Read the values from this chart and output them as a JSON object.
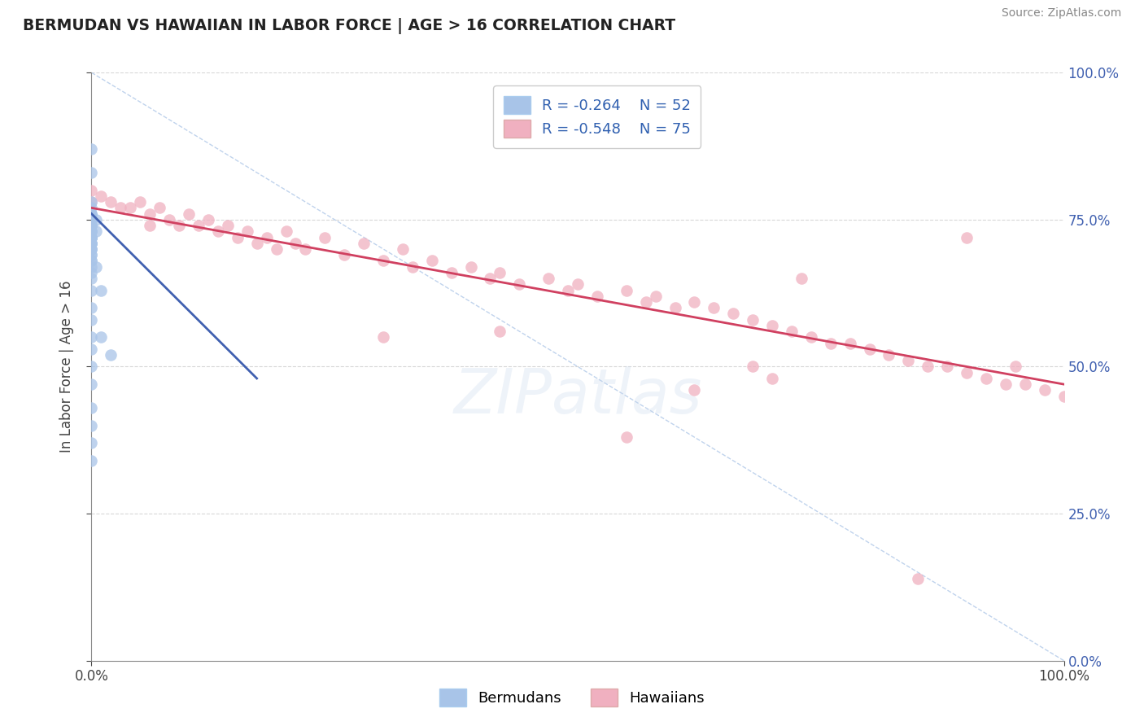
{
  "title": "BERMUDAN VS HAWAIIAN IN LABOR FORCE | AGE > 16 CORRELATION CHART",
  "source": "Source: ZipAtlas.com",
  "ylabel": "In Labor Force | Age > 16",
  "xlim": [
    0.0,
    1.0
  ],
  "ylim": [
    0.0,
    1.0
  ],
  "legend_r_bermudans": "R = -0.264",
  "legend_n_bermudans": "N = 52",
  "legend_r_hawaiians": "R = -0.548",
  "legend_n_hawaiians": "N = 75",
  "color_bermudans_fill": "#a8c4e8",
  "color_bermudans_edge": "#7aaadd",
  "color_hawaiians_fill": "#f0b0c0",
  "color_hawaiians_edge": "#e080a0",
  "color_line_bermudans": "#4060b0",
  "color_line_hawaiians": "#d04060",
  "color_diagonal": "#b0c8e8",
  "watermark": "ZIPatlas",
  "bg_color": "#ffffff",
  "grid_color": "#d8d8d8",
  "bermudans_x": [
    0.0,
    0.0,
    0.0,
    0.0,
    0.0,
    0.0,
    0.0,
    0.0,
    0.0,
    0.0,
    0.0,
    0.0,
    0.0,
    0.0,
    0.0,
    0.0,
    0.0,
    0.0,
    0.0,
    0.0,
    0.0,
    0.0,
    0.0,
    0.0,
    0.0,
    0.0,
    0.0,
    0.0,
    0.0,
    0.0,
    0.0,
    0.0,
    0.0,
    0.0,
    0.0,
    0.0,
    0.0,
    0.0,
    0.0,
    0.0,
    0.0,
    0.0,
    0.0,
    0.0,
    0.0,
    0.0,
    0.005,
    0.005,
    0.005,
    0.01,
    0.01,
    0.02
  ],
  "bermudans_y": [
    0.87,
    0.83,
    0.78,
    0.77,
    0.76,
    0.76,
    0.76,
    0.75,
    0.75,
    0.75,
    0.74,
    0.74,
    0.74,
    0.73,
    0.73,
    0.73,
    0.72,
    0.72,
    0.72,
    0.72,
    0.72,
    0.71,
    0.71,
    0.71,
    0.71,
    0.7,
    0.7,
    0.7,
    0.69,
    0.69,
    0.68,
    0.68,
    0.67,
    0.66,
    0.65,
    0.63,
    0.6,
    0.58,
    0.55,
    0.53,
    0.5,
    0.47,
    0.43,
    0.4,
    0.37,
    0.34,
    0.75,
    0.73,
    0.67,
    0.63,
    0.55,
    0.52
  ],
  "hawaiians_x": [
    0.0,
    0.0,
    0.01,
    0.02,
    0.03,
    0.04,
    0.05,
    0.06,
    0.06,
    0.07,
    0.08,
    0.09,
    0.1,
    0.11,
    0.12,
    0.13,
    0.14,
    0.15,
    0.16,
    0.17,
    0.18,
    0.19,
    0.2,
    0.21,
    0.22,
    0.24,
    0.26,
    0.28,
    0.3,
    0.32,
    0.33,
    0.35,
    0.37,
    0.39,
    0.41,
    0.42,
    0.44,
    0.47,
    0.49,
    0.5,
    0.52,
    0.55,
    0.57,
    0.58,
    0.6,
    0.62,
    0.64,
    0.66,
    0.68,
    0.7,
    0.72,
    0.74,
    0.76,
    0.78,
    0.8,
    0.82,
    0.84,
    0.86,
    0.88,
    0.9,
    0.92,
    0.94,
    0.96,
    0.68,
    0.7,
    0.55,
    0.62,
    0.73,
    0.85,
    0.9,
    0.95,
    0.98,
    1.0,
    0.3,
    0.42
  ],
  "hawaiians_y": [
    0.8,
    0.78,
    0.79,
    0.78,
    0.77,
    0.77,
    0.78,
    0.76,
    0.74,
    0.77,
    0.75,
    0.74,
    0.76,
    0.74,
    0.75,
    0.73,
    0.74,
    0.72,
    0.73,
    0.71,
    0.72,
    0.7,
    0.73,
    0.71,
    0.7,
    0.72,
    0.69,
    0.71,
    0.68,
    0.7,
    0.67,
    0.68,
    0.66,
    0.67,
    0.65,
    0.66,
    0.64,
    0.65,
    0.63,
    0.64,
    0.62,
    0.63,
    0.61,
    0.62,
    0.6,
    0.61,
    0.6,
    0.59,
    0.58,
    0.57,
    0.56,
    0.55,
    0.54,
    0.54,
    0.53,
    0.52,
    0.51,
    0.5,
    0.5,
    0.49,
    0.48,
    0.47,
    0.47,
    0.5,
    0.48,
    0.38,
    0.46,
    0.65,
    0.14,
    0.72,
    0.5,
    0.46,
    0.45,
    0.55,
    0.56
  ],
  "haw_line_x0": 0.0,
  "haw_line_x1": 1.0,
  "haw_line_y0": 0.77,
  "haw_line_y1": 0.47,
  "berm_line_x0": 0.0,
  "berm_line_x1": 0.17,
  "berm_line_y0": 0.76,
  "berm_line_y1": 0.48
}
